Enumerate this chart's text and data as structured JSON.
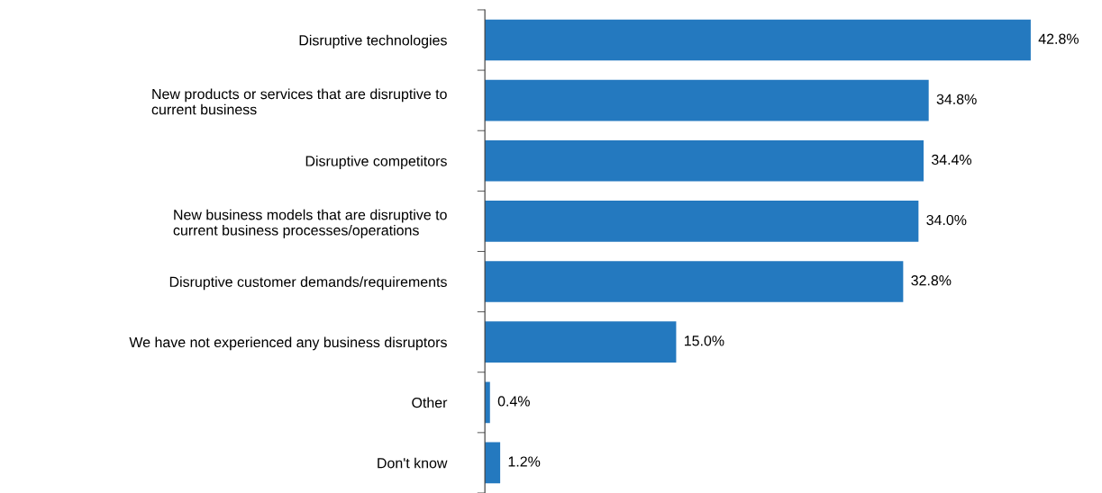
{
  "chart_data": {
    "type": "bar",
    "orientation": "horizontal",
    "categories": [
      "Disruptive technologies",
      "New products or services that are disruptive to\ncurrent business",
      "Disruptive competitors",
      "New business models that are disruptive to\ncurrent business processes/operations",
      "Disruptive customer demands/requirements",
      "We have not experienced any business disruptors",
      "Other",
      "Don't know"
    ],
    "values": [
      42.8,
      34.8,
      34.4,
      34.0,
      32.8,
      15.0,
      0.4,
      1.2
    ],
    "value_labels": [
      "42.8%",
      "34.8%",
      "34.4%",
      "34.0%",
      "32.8%",
      "15.0%",
      "0.4%",
      "1.2%"
    ],
    "color": "#2479bf",
    "grid": false,
    "legend": false
  }
}
